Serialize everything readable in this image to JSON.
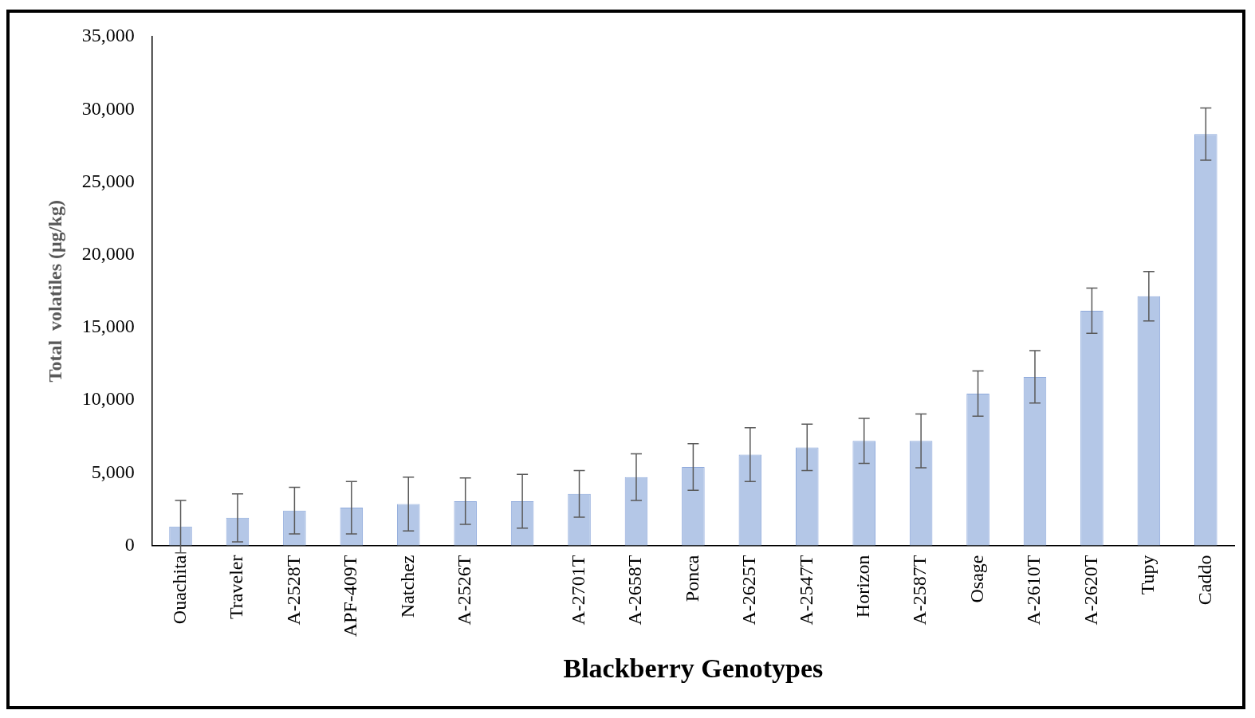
{
  "chart_data": {
    "type": "bar",
    "xlabel": "Blackberry Genotypes",
    "ylabel": "Total  volatiles (µg/kg)",
    "categories": [
      "Ouachita",
      "Traveler",
      "A-2528T",
      "APF-409T",
      "Natchez",
      "A-2526T",
      null,
      "A-2701T",
      "A-2658T",
      "Ponca",
      "A-2625T",
      "A-2547T",
      "Horizon",
      "A-2587T",
      "Osage",
      "A-2610T",
      "A-2620T",
      "Tupy",
      "Caddo"
    ],
    "values": [
      1300,
      1900,
      2400,
      2600,
      2850,
      3050,
      3050,
      3550,
      4700,
      5400,
      6250,
      6750,
      7200,
      7200,
      10450,
      11600,
      16150,
      17150,
      28300
    ],
    "errors": [
      1800,
      1650,
      1600,
      1800,
      1850,
      1600,
      1850,
      1600,
      1600,
      1600,
      1850,
      1600,
      1550,
      1850,
      1550,
      1800,
      1550,
      1700,
      1800
    ],
    "color": "#b4c7e7",
    "ylim": [
      0,
      35000
    ],
    "yticks": [
      {
        "value": 0,
        "label": "0"
      },
      {
        "value": 5000,
        "label": "5,000"
      },
      {
        "value": 10000,
        "label": "10,000"
      },
      {
        "value": 15000,
        "label": "15,000"
      },
      {
        "value": 20000,
        "label": "20,000"
      },
      {
        "value": 25000,
        "label": "25,000"
      },
      {
        "value": 30000,
        "label": "30,000"
      },
      {
        "value": 35000,
        "label": "35,000"
      }
    ],
    "grid": false,
    "legend": false
  }
}
